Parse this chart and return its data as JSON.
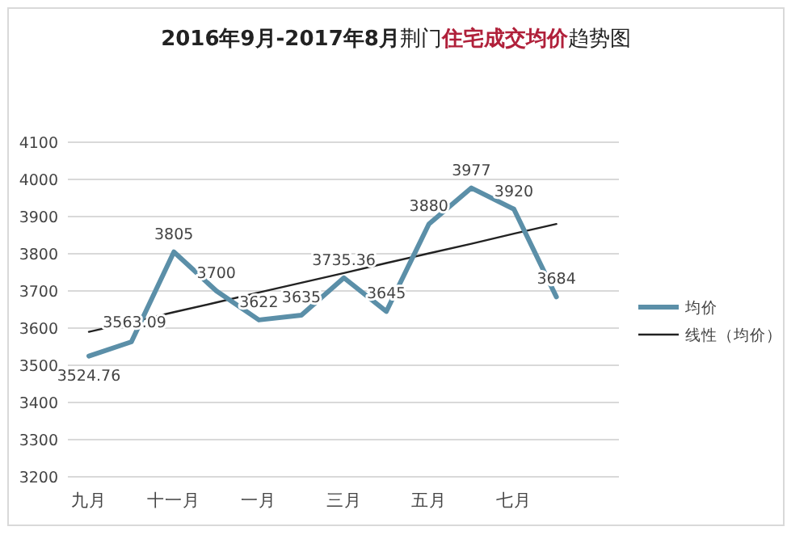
{
  "chart_data": {
    "type": "line",
    "title": "**2016年9月-2017年8月**荆门**住宅成交均价**趋势图",
    "categories": [
      "九月",
      null,
      "十一月",
      null,
      "一月",
      null,
      "三月",
      null,
      "五月",
      null,
      "七月",
      null
    ],
    "series": [
      {
        "name": "均价",
        "color": "#5b8fa8",
        "values": [
          3524.76,
          3563.09,
          3805,
          3700,
          3622,
          3635,
          3735.36,
          3645,
          3880,
          3977,
          3920,
          3684
        ],
        "value_labels": [
          "3524.76",
          "3563.09",
          "3805",
          "3700",
          "3622",
          "3635",
          "3735.36",
          "3645",
          "3880",
          "3977",
          "3920",
          "3684"
        ]
      },
      {
        "name": "线性（均价）",
        "color": "#222222",
        "type": "line",
        "values": [
          3590,
          3616,
          3643,
          3669,
          3696,
          3722,
          3748,
          3775,
          3801,
          3827,
          3854,
          3880
        ]
      }
    ],
    "ylim": [
      3200,
      4100
    ],
    "yticks": [
      3200,
      3300,
      3400,
      3500,
      3600,
      3700,
      3800,
      3900,
      4000,
      4100
    ],
    "grid": "y",
    "legend": "right",
    "marker": "none",
    "line_style": "solid"
  }
}
